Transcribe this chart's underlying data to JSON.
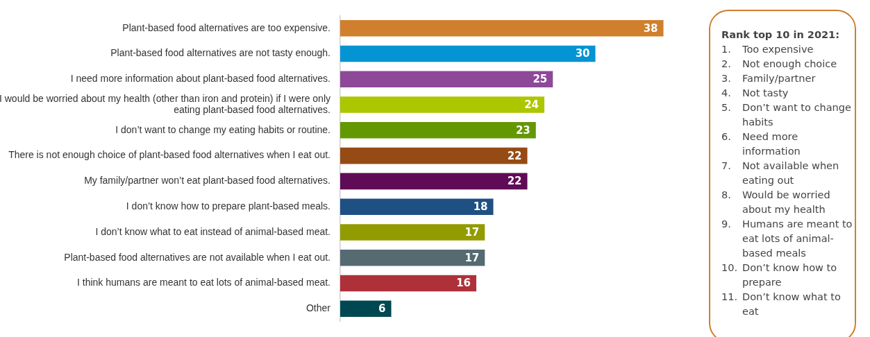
{
  "chart_data": {
    "type": "bar",
    "orientation": "horizontal",
    "data_labels": true,
    "legend": false,
    "categories": [
      "Plant-based food alternatives are too expensive.",
      "Plant-based food alternatives are not tasty enough.",
      "I need more information about plant-based food alternatives.",
      "I would be worried about my health (other than iron and protein) if I were only eating plant-based food alternatives.",
      "I don’t want to change my eating habits or routine.",
      "There is not enough choice of plant-based food alternatives when I eat out.",
      "My family/partner won’t eat plant-based food alternatives.",
      "I don’t know how to prepare plant-based meals.",
      "I don’t know what to eat instead of animal-based meat.",
      "Plant-based food alternatives are not available when I eat out.",
      "I think humans are meant to eat lots of animal-based meat.",
      "Other"
    ],
    "values": [
      38,
      30,
      25,
      24,
      23,
      22,
      22,
      18,
      17,
      17,
      16,
      6
    ],
    "colors": [
      "#d07f2c",
      "#0594d3",
      "#8e4898",
      "#acc600",
      "#649800",
      "#964b15",
      "#600b56",
      "#1f5084",
      "#929c00",
      "#566a72",
      "#ae3139",
      "#004851"
    ],
    "annotations": [
      "Rank top 10 in 2021:",
      "1. Too expensive",
      "2. Not enough choice",
      "3. Family/partner",
      "4. Not tasty",
      "5. Don’t want to change habits",
      "6. Need more information",
      "7. Not available when eating out",
      "8. Would be worried about my health",
      "9. Humans are meant to eat lots of animal-based meals",
      "10. Don’t know how to prepare",
      "11. Don’t know what to eat"
    ]
  }
}
